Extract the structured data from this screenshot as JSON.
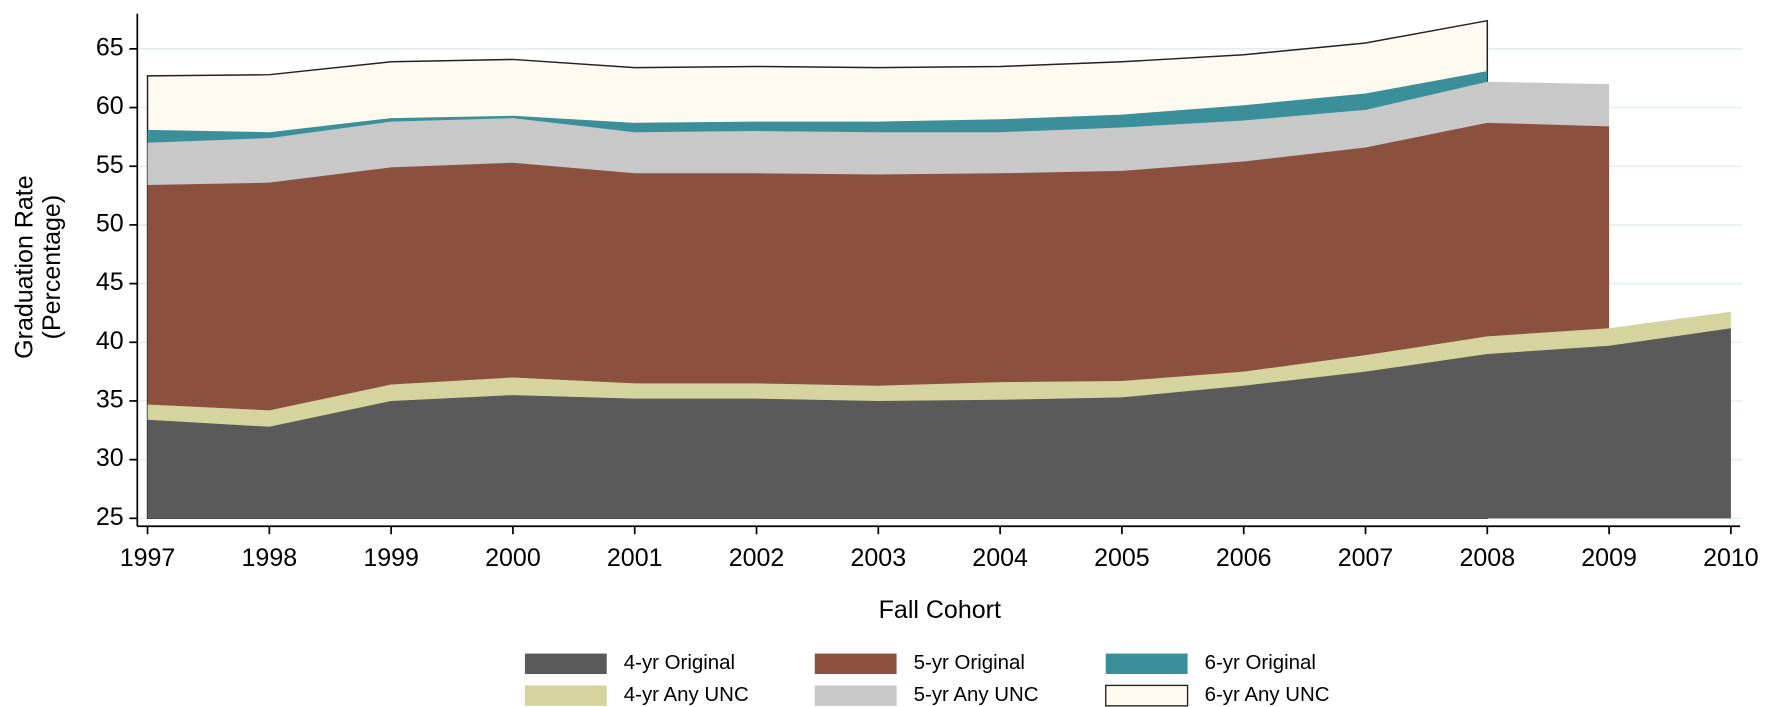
{
  "chart_data": {
    "type": "area",
    "xlabel": "Fall Cohort",
    "ylabel": [
      "Graduation Rate",
      "(Percentage)"
    ],
    "x": [
      1997,
      1998,
      1999,
      2000,
      2001,
      2002,
      2003,
      2004,
      2005,
      2006,
      2007,
      2008,
      2009,
      2010
    ],
    "xlim": [
      1997,
      2010
    ],
    "xticks": [
      1997,
      1998,
      1999,
      2000,
      2001,
      2002,
      2003,
      2004,
      2005,
      2006,
      2007,
      2008,
      2009,
      2010
    ],
    "ylim": [
      25,
      68
    ],
    "yticks": [
      25,
      30,
      35,
      40,
      45,
      50,
      55,
      60,
      65
    ],
    "grid": true,
    "legend": "bottom",
    "series": [
      {
        "name": "4-yr Original",
        "color": "#5a5a5a",
        "values": [
          33.4,
          32.8,
          35.0,
          35.5,
          35.2,
          35.2,
          35.0,
          35.1,
          35.3,
          36.3,
          37.5,
          39.0,
          39.7,
          41.2
        ]
      },
      {
        "name": "5-yr Original",
        "color": "#8b503e",
        "values": [
          53.4,
          53.6,
          54.9,
          55.3,
          54.4,
          54.4,
          54.3,
          54.4,
          54.6,
          55.4,
          56.6,
          58.7,
          58.4,
          null
        ]
      },
      {
        "name": "6-yr Original",
        "color": "#3a8f9a",
        "values": [
          58.1,
          57.9,
          59.1,
          59.3,
          58.7,
          58.8,
          58.8,
          59.0,
          59.4,
          60.2,
          61.2,
          63.1,
          null,
          null
        ]
      },
      {
        "name": "4-yr Any UNC",
        "color": "#d6d49e",
        "values": [
          34.7,
          34.2,
          36.4,
          37.0,
          36.5,
          36.5,
          36.3,
          36.6,
          36.7,
          37.5,
          38.9,
          40.5,
          41.2,
          42.6
        ]
      },
      {
        "name": "5-yr Any UNC",
        "color": "#c8c8c8",
        "values": [
          57.0,
          57.4,
          58.8,
          59.1,
          57.9,
          58.0,
          57.9,
          57.9,
          58.3,
          58.9,
          59.8,
          62.2,
          62.0,
          null
        ]
      },
      {
        "name": "6-yr Any UNC",
        "color": "#fffaf0",
        "values": [
          62.7,
          62.8,
          63.9,
          64.1,
          63.4,
          63.5,
          63.4,
          63.5,
          63.9,
          64.5,
          65.5,
          67.4,
          null,
          null
        ]
      }
    ]
  }
}
